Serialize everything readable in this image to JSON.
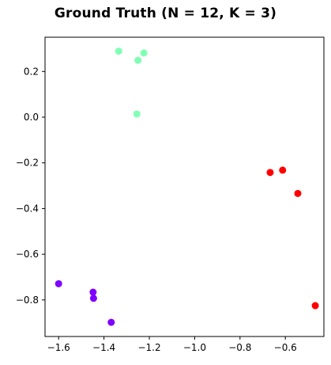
{
  "chart_data": {
    "type": "scatter",
    "title": "Ground Truth (N = 12, K = 3)",
    "xlabel": "",
    "ylabel": "",
    "xlim": [
      -1.66,
      -0.43
    ],
    "ylim": [
      -0.96,
      0.35
    ],
    "xticks": [
      -1.6,
      -1.4,
      -1.2,
      -1.0,
      -0.8,
      -0.6
    ],
    "xtick_labels": [
      "−1.6",
      "−1.4",
      "−1.2",
      "−1.0",
      "−0.8",
      "−0.6"
    ],
    "yticks": [
      0.2,
      0.0,
      -0.2,
      -0.4,
      -0.6,
      -0.8
    ],
    "ytick_labels": [
      "0.2",
      "0.0",
      "−0.2",
      "−0.4",
      "−0.6",
      "−0.8"
    ],
    "grid": false,
    "legend": "none",
    "series": [
      {
        "color": "#80ffb4",
        "points": [
          {
            "x": -1.335,
            "y": 0.289
          },
          {
            "x": -1.224,
            "y": 0.281
          },
          {
            "x": -1.25,
            "y": 0.249
          },
          {
            "x": -1.255,
            "y": 0.014
          }
        ]
      },
      {
        "color": "#ff0000",
        "points": [
          {
            "x": -0.667,
            "y": -0.242
          },
          {
            "x": -0.612,
            "y": -0.232
          },
          {
            "x": -0.545,
            "y": -0.334
          },
          {
            "x": -0.468,
            "y": -0.825
          }
        ]
      },
      {
        "color": "#8000ff",
        "points": [
          {
            "x": -1.6,
            "y": -0.729
          },
          {
            "x": -1.448,
            "y": -0.766
          },
          {
            "x": -1.446,
            "y": -0.793
          },
          {
            "x": -1.368,
            "y": -0.898
          }
        ]
      }
    ]
  }
}
